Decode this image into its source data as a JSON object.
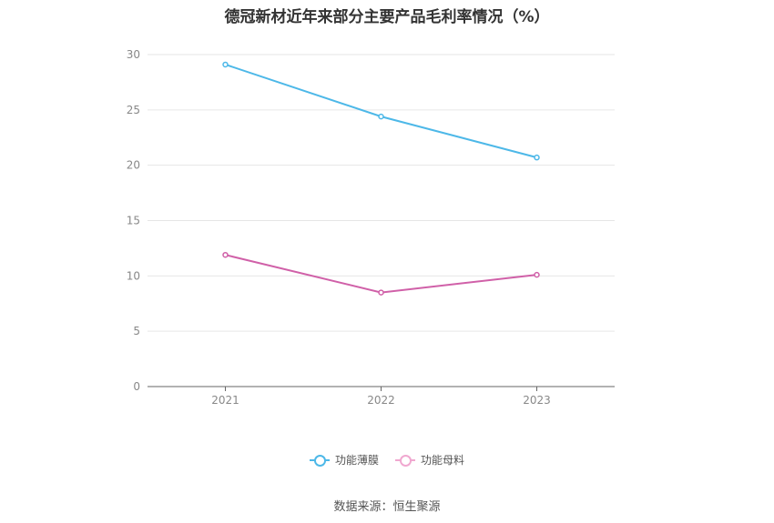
{
  "chart_data": {
    "type": "line",
    "title": "德冠新材近年来部分主要产品毛利率情况（%）",
    "categories": [
      "2021",
      "2022",
      "2023"
    ],
    "series": [
      {
        "name": "功能薄膜",
        "values": [
          29.1,
          24.4,
          20.7
        ],
        "color": "#4db8e8"
      },
      {
        "name": "功能母料",
        "values": [
          11.9,
          8.5,
          10.1
        ],
        "color": "#d060a8"
      }
    ],
    "yticks": [
      "0",
      "5",
      "10",
      "15",
      "20",
      "25",
      "30"
    ],
    "ylim": [
      0,
      30
    ],
    "grid": true,
    "legend_position": "bottom"
  },
  "source": "数据来源：恒生聚源"
}
